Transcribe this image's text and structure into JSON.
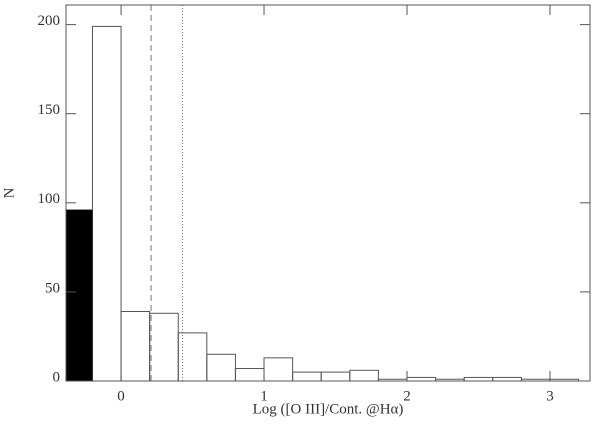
{
  "chart_data": {
    "type": "histogram",
    "xlabel": "Log ([O III]/Cont. @Hα)",
    "ylabel": "N",
    "bins": [
      -0.4,
      -0.2,
      0,
      0.2,
      0.4,
      0.6,
      0.8,
      1.0,
      1.2,
      1.4,
      1.6,
      1.8,
      2.0,
      2.2,
      2.4,
      2.6,
      2.8,
      3.0,
      3.2
    ],
    "series": [
      {
        "color": "#555555",
        "filled": false,
        "values": [
          96,
          199,
          39,
          38,
          27,
          15,
          7,
          13,
          5,
          5,
          6,
          1,
          2,
          1,
          2,
          2,
          1,
          1
        ]
      },
      {
        "color": "#000000",
        "filled": true,
        "values": [
          96,
          0,
          0,
          0,
          0,
          0,
          0,
          0,
          0,
          0,
          0,
          0,
          0,
          0,
          0,
          0,
          0,
          0
        ]
      }
    ],
    "vlines": [
      {
        "value": 0.21,
        "style": "dashed",
        "color": "#777777"
      },
      {
        "value": 0.43,
        "style": "dotted",
        "color": "#777777"
      }
    ],
    "xlim": [
      -0.385,
      3.28
    ],
    "xticks": [
      0,
      1,
      2,
      3
    ],
    "ylim": [
      0,
      211
    ],
    "yticks": [
      0,
      50,
      100,
      150,
      200
    ]
  }
}
